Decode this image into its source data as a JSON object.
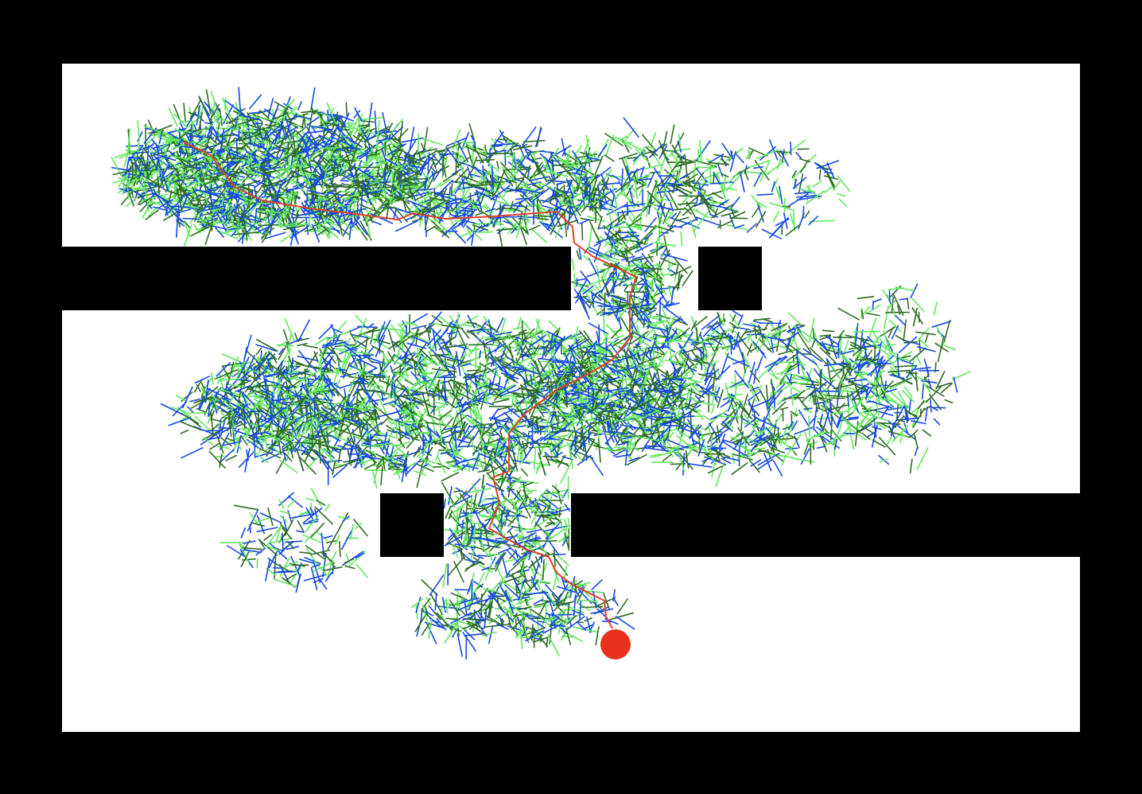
{
  "colors": {
    "background": "#000000",
    "free_space": "#ffffff",
    "obstacle": "#000000",
    "tree_blue": "#1448e6",
    "tree_light_green": "#5fe85a",
    "tree_dark_green": "#2f6b22",
    "path": "#e0402a",
    "goal": "#e8321e"
  },
  "legend": []
}
